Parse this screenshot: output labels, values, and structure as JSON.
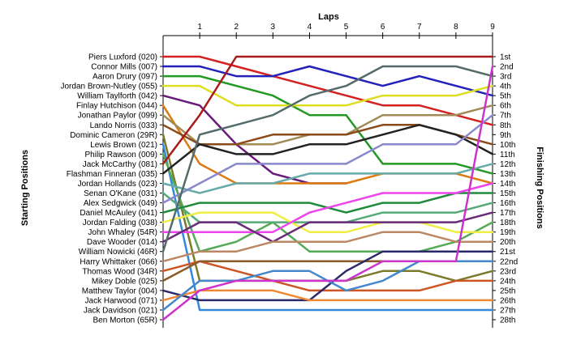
{
  "chart_data": {
    "type": "line",
    "title": "Laps",
    "xlabel": "Laps",
    "ylabel_left": "Starting Positions",
    "ylabel_right": "Finishing Positions",
    "x_ticks": [
      1,
      2,
      3,
      4,
      5,
      6,
      7,
      8,
      9
    ],
    "x_range": [
      0,
      9
    ],
    "y_range": [
      1,
      28
    ],
    "y_inverted": true,
    "drivers": [
      "Piers Luxford (020)",
      "Connor Mills (007)",
      "Aaron Drury (097)",
      "Jordan Brown-Nutley (055)",
      "William Taylforth (042)",
      "Finlay Hutchison (044)",
      "Jonathan Paylor (099)",
      "Lando Norris (033)",
      "Dominic Cameron (29R)",
      "Lewis Brown (021)",
      "Philip Rawson (009)",
      "Jack McCarthy (081)",
      "Flashman Finneran (035)",
      "Jordan Hollands (023)",
      "Senan O'Kane (031)",
      "Alex Sedgwick (049)",
      "Daniel McAuley (041)",
      "Jordan Falding (038)",
      "John Whaley (54R)",
      "Dave Wooder (014)",
      "William Nowicki (46R)",
      "Harry Whittaker (066)",
      "Thomas Wood (34R)",
      "Mikey Doble (025)",
      "Matthew Taylor (004)",
      "Jack Harwood (071)",
      "Jack Davidson (021)",
      "Ben Morton (65R)"
    ],
    "finishing_labels": [
      "1st",
      "2nd",
      "3rd",
      "4th",
      "5th",
      "6th",
      "7th",
      "8th",
      "9th",
      "10th",
      "11th",
      "12th",
      "13th",
      "14th",
      "15th",
      "16th",
      "17th",
      "18th",
      "19th",
      "20th",
      "21st",
      "22nd",
      "23rd",
      "24th",
      "25th",
      "26th",
      "27th",
      "28th"
    ],
    "series": [
      {
        "color": "#d42020",
        "positions": [
          1,
          1,
          2,
          3,
          4,
          5,
          6,
          6,
          7,
          8
        ]
      },
      {
        "color": "#2222bb",
        "positions": [
          2,
          2,
          3,
          3,
          2,
          3,
          4,
          3,
          4,
          5
        ]
      },
      {
        "color": "#229922",
        "positions": [
          3,
          3,
          4,
          5,
          7,
          7,
          12,
          12,
          12,
          13
        ]
      },
      {
        "color": "#dddd22",
        "positions": [
          4,
          4,
          6,
          6,
          6,
          6,
          5,
          5,
          5,
          4
        ]
      },
      {
        "color": "#6a1a7a",
        "positions": [
          5,
          6,
          10,
          13,
          14,
          14
        ]
      },
      {
        "color": "#dd7a11",
        "positions": [
          6,
          12,
          14,
          14,
          14,
          14,
          13,
          13,
          13,
          14
        ]
      },
      {
        "color": "#a08a55",
        "positions": [
          7,
          10,
          10,
          10,
          9,
          9,
          7,
          7,
          7,
          6
        ]
      },
      {
        "color": "#8a4a1a",
        "positions": [
          8,
          10,
          10,
          9,
          9,
          9,
          8,
          8,
          9,
          10
        ]
      },
      {
        "color": "#7a7a2a",
        "positions": [
          9,
          24,
          24,
          24,
          24,
          24,
          23,
          23,
          24,
          23
        ]
      },
      {
        "color": "#3388dd",
        "positions": [
          10,
          27,
          27,
          27,
          27,
          27,
          27,
          27,
          27,
          27
        ]
      },
      {
        "color": "#55aa55",
        "positions": [
          11,
          21,
          20,
          18,
          21,
          21,
          21,
          21,
          20,
          18
        ]
      },
      {
        "color": "#aa1a1a",
        "positions": [
          12,
          7,
          1,
          1,
          1,
          1,
          1,
          1,
          1,
          1
        ]
      },
      {
        "color": "#222222",
        "positions": [
          13,
          10,
          11,
          11,
          10,
          10,
          9,
          8,
          9,
          11
        ]
      },
      {
        "color": "#66aaaa",
        "positions": [
          14,
          15,
          14,
          14,
          13,
          13,
          13,
          13,
          13,
          12
        ]
      },
      {
        "color": "#55aa77",
        "positions": [
          15,
          18,
          18,
          18,
          18,
          18,
          17,
          17,
          17,
          16
        ]
      },
      {
        "color": "#8888cc",
        "positions": [
          16,
          14,
          12,
          12,
          12,
          12,
          10,
          10,
          10,
          7
        ]
      },
      {
        "color": "#1f8a3a",
        "positions": [
          17,
          16,
          16,
          16,
          16,
          17,
          16,
          16,
          15,
          15
        ]
      },
      {
        "color": "#eeee44",
        "positions": [
          18,
          17,
          17,
          17,
          19,
          19,
          18,
          18,
          19,
          19
        ]
      },
      {
        "color": "#ee44ee",
        "positions": [
          19,
          19,
          19,
          19,
          17,
          16,
          15,
          15,
          15,
          14
        ]
      },
      {
        "color": "#6a2a7a",
        "positions": [
          20,
          18,
          18,
          20,
          18,
          18,
          18,
          18,
          18,
          17
        ]
      },
      {
        "color": "#556a6a",
        "positions": [
          21,
          9,
          8,
          7,
          5,
          4,
          2,
          2,
          2,
          3
        ]
      },
      {
        "color": "#bb8866",
        "positions": [
          22,
          21,
          21,
          20,
          20,
          20,
          19,
          19,
          20,
          20
        ]
      },
      {
        "color": "#cc5522",
        "positions": [
          23,
          22,
          23,
          24,
          25,
          25,
          25,
          25,
          24,
          24
        ]
      },
      {
        "color": "#8a5a2a",
        "positions": [
          24,
          22,
          22,
          22,
          22,
          22,
          22,
          22,
          22,
          22
        ]
      },
      {
        "color": "#2a2a6a",
        "positions": [
          25,
          26,
          26,
          26,
          26,
          23,
          21,
          21,
          21,
          21
        ]
      },
      {
        "color": "#ee8833",
        "positions": [
          26,
          25,
          25,
          25,
          26,
          26,
          26,
          26,
          26,
          26
        ]
      },
      {
        "color": "#4488cc",
        "positions": [
          27,
          24,
          24,
          23,
          23,
          25,
          24,
          22,
          22,
          22
        ]
      },
      {
        "color": "#cc33cc",
        "positions": [
          28,
          25,
          24,
          24,
          24,
          24,
          22,
          22,
          22,
          2
        ]
      }
    ]
  }
}
